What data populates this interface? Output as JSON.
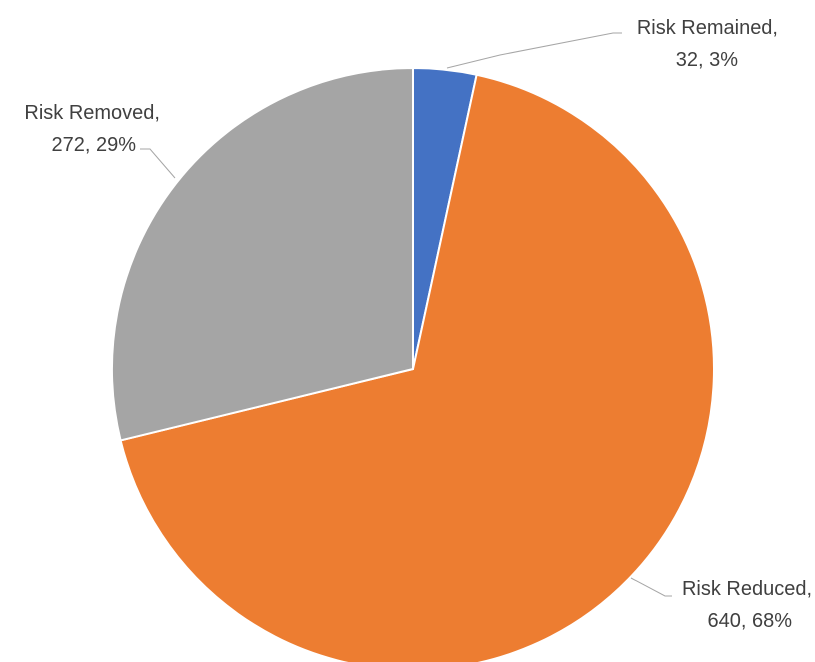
{
  "chart_data": {
    "type": "pie",
    "title": "",
    "slices": [
      {
        "name": "Risk Remained",
        "value": 32,
        "percent": "3%",
        "color": "#4472c4",
        "label_value": "32, 3%"
      },
      {
        "name": "Risk Reduced",
        "value": 640,
        "percent": "68%",
        "color": "#ed7d31",
        "label_value": "640, 68%"
      },
      {
        "name": "Risk Removed",
        "value": 272,
        "percent": "29%",
        "color": "#a5a5a5",
        "label_value": "272, 29%"
      }
    ],
    "start_angle": "12 o'clock",
    "direction": "clockwise",
    "legend": "none",
    "label_style": "outside with leader lines"
  }
}
